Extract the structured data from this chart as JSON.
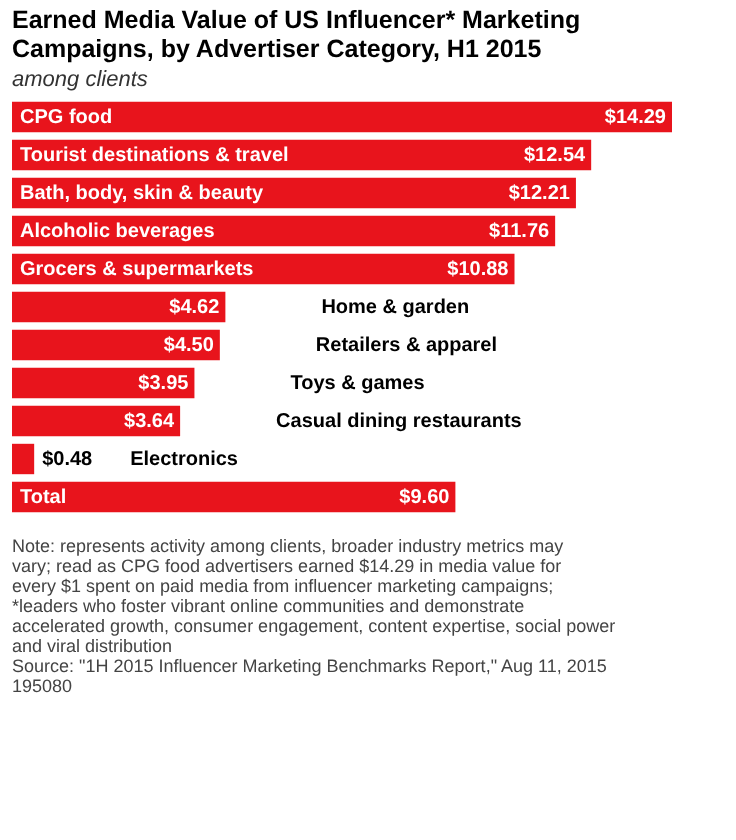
{
  "chart_data": {
    "type": "bar",
    "orientation": "horizontal",
    "title": "Earned Media Value of US Influencer* Marketing Campaigns, by Advertiser Category, H1 2015",
    "subtitle": "among clients",
    "categories": [
      "CPG food",
      "Tourist destinations & travel",
      "Bath, body, skin & beauty",
      "Alcoholic beverages",
      "Grocers & supermarkets",
      "Home & garden",
      "Retailers & apparel",
      "Toys & games",
      "Casual dining restaurants",
      "Electronics",
      "Total"
    ],
    "values": [
      14.29,
      12.54,
      12.21,
      11.76,
      10.88,
      4.62,
      4.5,
      3.95,
      3.64,
      0.48,
      9.6
    ],
    "value_labels": [
      "$14.29",
      "$12.54",
      "$12.21",
      "$11.76",
      "$10.88",
      "$4.62",
      "$4.50",
      "$3.95",
      "$3.64",
      "$0.48",
      "$9.60"
    ],
    "color": "#e8141c",
    "annotations": [
      "Note: represents activity among clients, broader industry metrics may vary; read as CPG food advertisers earned $14.29 in media value for every $1 spent on paid media from influencer marketing campaigns; *leaders who foster vibrant online communities and demonstrate accelerated growth, consumer engagement, content expertise, social power and viral distribution",
      "Source: \"1H 2015 Influencer Marketing Benchmarks Report,\" Aug 11, 2015",
      "195080"
    ]
  }
}
